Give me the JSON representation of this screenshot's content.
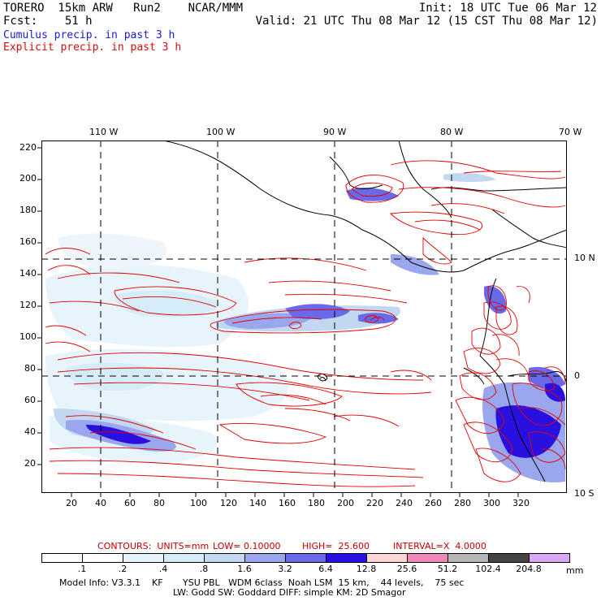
{
  "header": {
    "model": "TORERO  15km ARW   Run2    NCAR/MMM",
    "init": "Init: 18 UTC Tue 06 Mar 12",
    "fcst": "Fcst:    51 h",
    "valid": "Valid: 21 UTC Thu 08 Mar 12 (15 CST Thu 08 Mar 12)"
  },
  "legend": {
    "cumulus": "Cumulus precip. in past 3 h",
    "explicit": "Explicit precip. in past 3 h",
    "cumulus_color": "#2020d0",
    "explicit_color": "#e00000"
  },
  "map": {
    "lon_labels": [
      "110 W",
      "100 W",
      "90 W",
      "80 W",
      "70 W"
    ],
    "lat_labels": [
      "10 N",
      "0",
      "10 S"
    ],
    "y_ticks": [
      "220",
      "200",
      "180",
      "160",
      "140",
      "120",
      "100",
      "80",
      "60",
      "40",
      "20"
    ],
    "x_ticks": [
      "20",
      "40",
      "60",
      "80",
      "100",
      "120",
      "140",
      "160",
      "180",
      "200",
      "220",
      "240",
      "260",
      "280",
      "300",
      "320"
    ]
  },
  "contours": {
    "units_label": "CONTOURS:  UNITS=mm",
    "low": "LOW= 0.10000",
    "high": "HIGH=  25.600",
    "interval": "INTERVAL=X  4.0000"
  },
  "colorbar": {
    "labels": [
      ".1",
      ".2",
      ".4",
      ".8",
      "1.6",
      "3.2",
      "6.4",
      "12.8",
      "25.6",
      "51.2",
      "102.4",
      "204.8"
    ],
    "unit": "mm",
    "colors": [
      "#ffffff",
      "#ffffff",
      "#e8f4fb",
      "#d6ecf8",
      "#c2d8f2",
      "#9aa6ee",
      "#6a6ae8",
      "#2a10e0",
      "#ffd6d6",
      "#ee88bb",
      "#b6b6b6",
      "#444444",
      "#d8a8f4"
    ]
  },
  "footer": {
    "line1": "Model Info: V3.3.1    KF       YSU PBL   WDM 6class  Noah LSM  15 km,    44 levels,    75 sec",
    "line2": "LW: Godd SW: Goddard DIFF: simple KM: 2D Smagor"
  }
}
